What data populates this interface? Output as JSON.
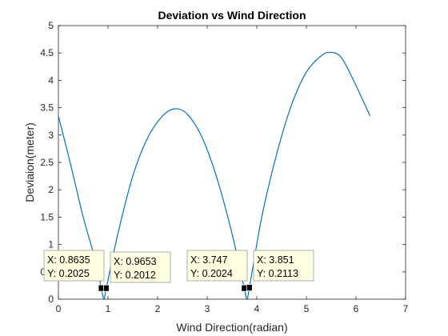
{
  "chart_data": {
    "type": "line",
    "title": "Deviation vs Wind Direction",
    "xlabel": "Wind Direction(radian)",
    "ylabel": "Deviaion(meter)",
    "xlim": [
      0,
      7
    ],
    "ylim": [
      0,
      5
    ],
    "xticks": [
      "0",
      "1",
      "2",
      "3",
      "4",
      "5",
      "6",
      "7"
    ],
    "yticks": [
      "0",
      "0.5",
      "1",
      "1.5",
      "2",
      "2.5",
      "3",
      "3.5",
      "4",
      "4.5",
      "5"
    ],
    "grid": false,
    "box": true,
    "line_color": "#0072BD",
    "series": [
      {
        "x": [
          0,
          0.25,
          0.5,
          0.75,
          0.8635,
          0.92,
          0.9653,
          1.2,
          1.5,
          1.8,
          2.1,
          2.35,
          2.6,
          2.9,
          3.2,
          3.5,
          3.747,
          3.8,
          3.851,
          4.1,
          4.4,
          4.7,
          5.0,
          5.3,
          5.5,
          5.7,
          5.95,
          6.2832
        ],
        "y": [
          3.35,
          2.45,
          1.5,
          0.7,
          0.2025,
          0.0,
          0.2012,
          1.2,
          2.25,
          2.95,
          3.35,
          3.48,
          3.38,
          2.95,
          2.2,
          1.2,
          0.2024,
          0.0,
          0.2113,
          1.5,
          2.65,
          3.55,
          4.15,
          4.45,
          4.51,
          4.42,
          4.0,
          3.35
        ]
      }
    ],
    "datatips": [
      {
        "x_text": "X: 0.8635",
        "y_text": "Y: 0.2025",
        "x": 0.8635,
        "y": 0.2025
      },
      {
        "x_text": "X: 0.9653",
        "y_text": "Y: 0.2012",
        "x": 0.9653,
        "y": 0.2012
      },
      {
        "x_text": "X: 3.747",
        "y_text": "Y: 0.2024",
        "x": 3.747,
        "y": 0.2024
      },
      {
        "x_text": "X: 3.851",
        "y_text": "Y: 0.2113",
        "x": 3.851,
        "y": 0.2113
      }
    ]
  }
}
